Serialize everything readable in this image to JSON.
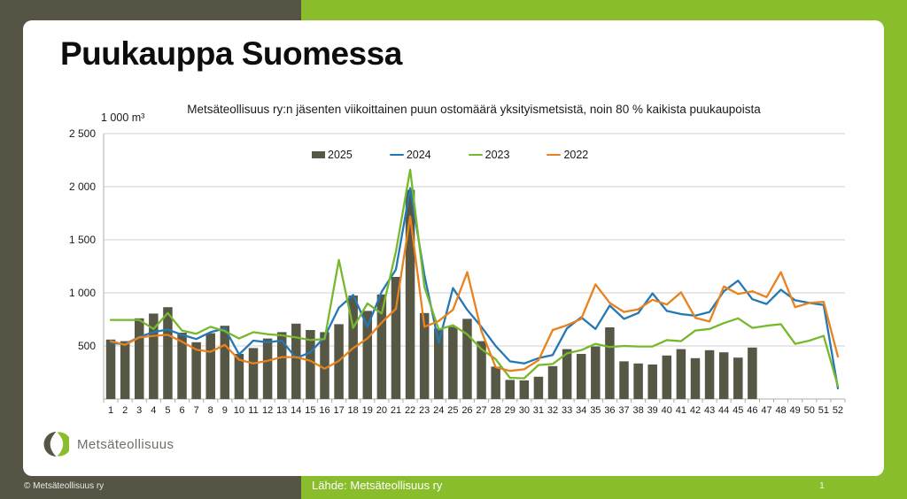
{
  "slide": {
    "title": "Puukauppa Suomessa",
    "footer_left": "© Metsäteollisuus ry",
    "footer_source": "Lähde: Metsäteollisuus ry",
    "page_number": "1",
    "logo_text": "Metsäteollisuus"
  },
  "colors": {
    "background_dark": "#565545",
    "background_green": "#8abd2c",
    "bar_2025": "#575746",
    "line_2024": "#2478b4",
    "line_2023": "#77b82d",
    "line_2022": "#e8821e",
    "gridline": "#d2d2d0",
    "axis": "#aeaea8"
  },
  "chart_data": {
    "type": "bar",
    "title": "Metsäteollisuus ry:n jäsenten viikoittainen puun ostomäärä yksityismetsistä, noin 80 % kaikista puukaupoista",
    "unit_label": "1 000 m³",
    "xlabel": "",
    "ylabel": "1 000 m³",
    "ylim": [
      0,
      2500
    ],
    "ytick_values": [
      500,
      1000,
      1500,
      2000,
      2500
    ],
    "ytick_labels": [
      "500",
      "1 000",
      "1 500",
      "2 000",
      "2 500"
    ],
    "grid": true,
    "legend_position": "top-center",
    "categories": [
      1,
      2,
      3,
      4,
      5,
      6,
      7,
      8,
      9,
      10,
      11,
      12,
      13,
      14,
      15,
      16,
      17,
      18,
      19,
      20,
      21,
      22,
      23,
      24,
      25,
      26,
      27,
      28,
      29,
      30,
      31,
      32,
      33,
      34,
      35,
      36,
      37,
      38,
      39,
      40,
      41,
      42,
      43,
      44,
      45,
      46,
      47,
      48,
      49,
      50,
      51,
      52
    ],
    "series": [
      {
        "name": "2025",
        "type": "bar",
        "color": "#575746",
        "values": [
          560,
          545,
          760,
          805,
          865,
          625,
          535,
          620,
          690,
          425,
          480,
          570,
          630,
          710,
          650,
          630,
          705,
          975,
          830,
          985,
          1150,
          1970,
          810,
          665,
          680,
          755,
          545,
          305,
          180,
          175,
          210,
          310,
          470,
          425,
          495,
          675,
          355,
          335,
          325,
          410,
          470,
          385,
          460,
          440,
          390,
          485
        ]
      },
      {
        "name": "2024",
        "type": "line",
        "color": "#2478b4",
        "values": [
          530,
          515,
          585,
          630,
          655,
          605,
          565,
          630,
          665,
          420,
          550,
          535,
          550,
          385,
          440,
          585,
          860,
          980,
          680,
          1010,
          1220,
          1985,
          1165,
          530,
          1045,
          840,
          680,
          500,
          355,
          335,
          385,
          415,
          665,
          770,
          660,
          880,
          755,
          810,
          995,
          830,
          800,
          785,
          820,
          1015,
          1115,
          940,
          895,
          1030,
          930,
          905,
          885,
          100
        ]
      },
      {
        "name": "2023",
        "type": "line",
        "color": "#77b82d",
        "values": [
          745,
          745,
          745,
          660,
          810,
          645,
          615,
          680,
          640,
          570,
          630,
          610,
          600,
          580,
          555,
          565,
          1310,
          670,
          900,
          805,
          1390,
          2160,
          1055,
          655,
          695,
          610,
          470,
          375,
          200,
          195,
          320,
          330,
          430,
          460,
          520,
          490,
          500,
          495,
          495,
          555,
          545,
          645,
          660,
          715,
          760,
          670,
          690,
          705,
          520,
          550,
          595,
          120
        ]
      },
      {
        "name": "2022",
        "type": "line",
        "color": "#e8821e",
        "values": [
          545,
          510,
          580,
          595,
          605,
          540,
          465,
          445,
          510,
          370,
          335,
          360,
          395,
          395,
          360,
          285,
          360,
          480,
          570,
          720,
          850,
          1720,
          680,
          735,
          840,
          1195,
          640,
          300,
          265,
          280,
          365,
          650,
          695,
          755,
          1080,
          905,
          820,
          845,
          935,
          890,
          1005,
          765,
          730,
          1060,
          990,
          1015,
          960,
          1195,
          865,
          905,
          915,
          400
        ]
      }
    ]
  }
}
